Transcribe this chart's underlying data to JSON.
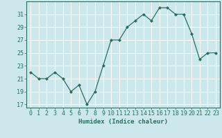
{
  "xlabel": "Humidex (Indice chaleur)",
  "x": [
    0,
    1,
    2,
    3,
    4,
    5,
    6,
    7,
    8,
    9,
    10,
    11,
    12,
    13,
    14,
    15,
    16,
    17,
    18,
    19,
    20,
    21,
    22,
    23
  ],
  "y": [
    22,
    21,
    21,
    22,
    21,
    19,
    20,
    17,
    19,
    23,
    27,
    27,
    29,
    30,
    31,
    30,
    32,
    32,
    31,
    31,
    28,
    24,
    25,
    25
  ],
  "line_color": "#2e6b5e",
  "marker": "D",
  "marker_size": 2.0,
  "bg_color": "#cde8ec",
  "grid_color": "#ffffff",
  "ylim": [
    16.5,
    33
  ],
  "xlim": [
    -0.5,
    23.5
  ],
  "yticks": [
    17,
    19,
    21,
    23,
    25,
    27,
    29,
    31
  ],
  "xticks": [
    0,
    1,
    2,
    3,
    4,
    5,
    6,
    7,
    8,
    9,
    10,
    11,
    12,
    13,
    14,
    15,
    16,
    17,
    18,
    19,
    20,
    21,
    22,
    23
  ],
  "tick_color": "#2e6b5e",
  "label_fontsize": 6.5,
  "tick_fontsize": 6.0,
  "linewidth": 0.9
}
